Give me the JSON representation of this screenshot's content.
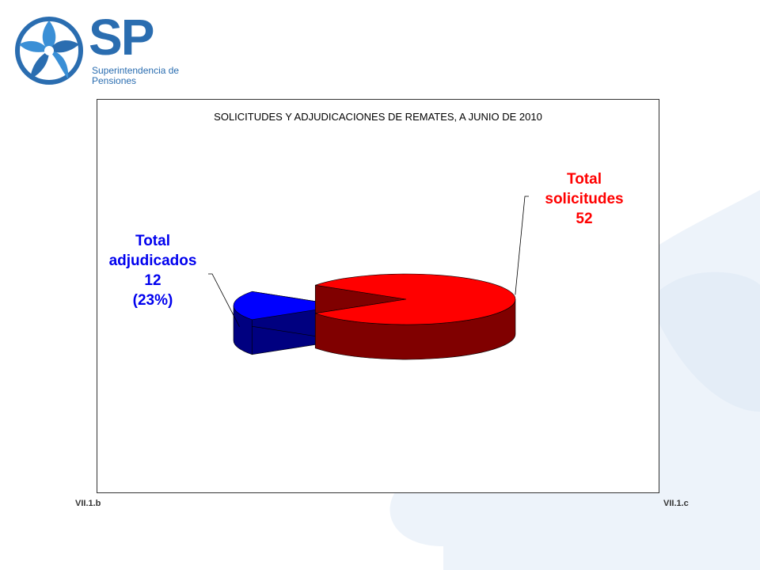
{
  "logo": {
    "acronym": "SP",
    "subtitle_line1": "Superintendencia de",
    "subtitle_line2": "Pensiones",
    "brand_color": "#2a6db0"
  },
  "chart_data": {
    "type": "pie",
    "title": "SOLICITUDES Y ADJUDICACIONES DE REMATES, A JUNIO DE 2010",
    "three_d": true,
    "slices": [
      {
        "name": "Total solicitudes",
        "value": 52,
        "label_lines": [
          "Total",
          "solicitudes",
          "52"
        ],
        "color": "#ff0000",
        "side_color": "#800000"
      },
      {
        "name": "Total adjudicados",
        "value": 12,
        "label_lines": [
          "Total",
          "adjudicados",
          "12",
          "(23%)"
        ],
        "color": "#0000ff",
        "side_color": "#000080",
        "exploded": true
      }
    ]
  },
  "footer": {
    "left_code": "VII.1.b",
    "right_code": "VII.1.c"
  }
}
